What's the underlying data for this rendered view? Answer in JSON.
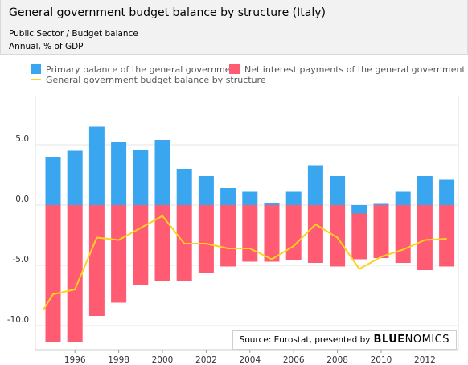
{
  "header": {
    "title": "General government budget balance by structure (Italy)",
    "subtitle": "Public Sector / Budget balance",
    "unit": "Annual, % of GDP"
  },
  "source": {
    "text": "Source: Eurostat, presented by",
    "logo_a": "BLUE",
    "logo_b": "NOMICS"
  },
  "colors": {
    "primary": "#3aa6f0",
    "interest": "#ff5b73",
    "balance": "#ffd21f"
  },
  "chart_data": {
    "type": "bar",
    "years": [
      1995,
      1996,
      1997,
      1998,
      1999,
      2000,
      2001,
      2002,
      2003,
      2004,
      2005,
      2006,
      2007,
      2008,
      2009,
      2010,
      2011,
      2012,
      2013
    ],
    "xticks": [
      1996,
      1998,
      2000,
      2002,
      2004,
      2006,
      2008,
      2010,
      2012
    ],
    "yticks": [
      5,
      0,
      -5,
      -10
    ],
    "ytick_labels": [
      "5.0",
      "0.0",
      "-5.0",
      "-10.0"
    ],
    "ylim": [
      -12,
      6.5
    ],
    "series": [
      {
        "name": "Primary balance of the general government",
        "type": "bar",
        "values": [
          4.0,
          4.5,
          6.5,
          5.2,
          4.6,
          5.4,
          3.0,
          2.4,
          1.4,
          1.1,
          0.2,
          1.1,
          3.3,
          2.4,
          -0.7,
          0.1,
          1.1,
          2.4,
          2.1
        ]
      },
      {
        "name": "Net interest payments of the general government",
        "type": "bar",
        "values": [
          -11.4,
          -11.4,
          -9.2,
          -8.1,
          -6.6,
          -6.3,
          -6.3,
          -5.6,
          -5.1,
          -4.7,
          -4.7,
          -4.6,
          -4.8,
          -5.1,
          -4.5,
          -4.4,
          -4.8,
          -5.4,
          -5.1
        ]
      },
      {
        "name": "General government budget balance by structure",
        "type": "line",
        "x": [
          1994.55,
          1995,
          1996,
          1997,
          1998,
          1999,
          2000,
          2001,
          2002,
          2003,
          2004,
          2005,
          2006,
          2007,
          2008,
          2009,
          2010,
          2011,
          2012,
          2013
        ],
        "values": [
          -8.7,
          -7.4,
          -7.0,
          -2.7,
          -2.9,
          -1.9,
          -0.9,
          -3.2,
          -3.2,
          -3.6,
          -3.6,
          -4.5,
          -3.4,
          -1.6,
          -2.7,
          -5.3,
          -4.3,
          -3.7,
          -2.9,
          -2.8
        ]
      }
    ]
  }
}
